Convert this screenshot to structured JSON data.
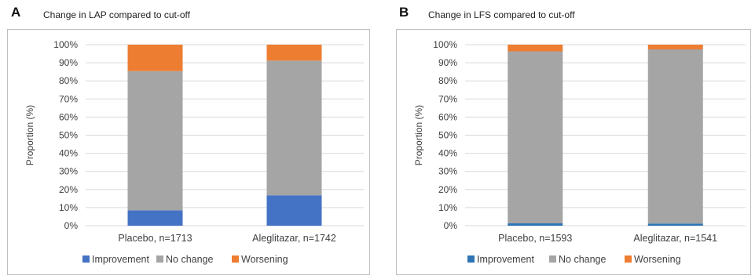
{
  "panels": [
    {
      "letter": "A",
      "title": "Change in LAP compared to cut-off"
    },
    {
      "letter": "B",
      "title": "Change in LFS compared to cut-off"
    }
  ],
  "chart_data": [
    {
      "type": "bar",
      "stacked": true,
      "title": "Change in LAP compared to cut-off",
      "xlabel": "",
      "ylabel": "Proportion (%)",
      "ylim": [
        0,
        100
      ],
      "yticks": [
        "0%",
        "10%",
        "20%",
        "30%",
        "40%",
        "50%",
        "60%",
        "70%",
        "80%",
        "90%",
        "100%"
      ],
      "categories": [
        "Placebo, n=1713",
        "Aleglitazar, n=1742"
      ],
      "series": [
        {
          "name": "Improvement",
          "color": "#4472C4",
          "values": [
            8.5,
            16.8
          ]
        },
        {
          "name": "No change",
          "color": "#A5A5A5",
          "values": [
            76.9,
            74.4
          ]
        },
        {
          "name": "Worsening",
          "color": "#ED7D31",
          "values": [
            14.6,
            8.8
          ]
        }
      ],
      "legend": "bottom",
      "grid": true
    },
    {
      "type": "bar",
      "stacked": true,
      "title": "Change in LFS compared to cut-off",
      "xlabel": "",
      "ylabel": "Proportion (%)",
      "ylim": [
        0,
        100
      ],
      "yticks": [
        "0%",
        "10%",
        "20%",
        "30%",
        "40%",
        "50%",
        "60%",
        "70%",
        "80%",
        "90%",
        "100%"
      ],
      "categories": [
        "Placebo, n=1593",
        "Aleglitazar, n=1541"
      ],
      "series": [
        {
          "name": "Improvement",
          "color": "#2E75B6",
          "values": [
            1.3,
            1.2
          ]
        },
        {
          "name": "No change",
          "color": "#A5A5A5",
          "values": [
            95.0,
            96.2
          ]
        },
        {
          "name": "Worsening",
          "color": "#ED7D31",
          "values": [
            3.7,
            2.6
          ]
        }
      ],
      "legend": "bottom",
      "grid": true
    }
  ]
}
